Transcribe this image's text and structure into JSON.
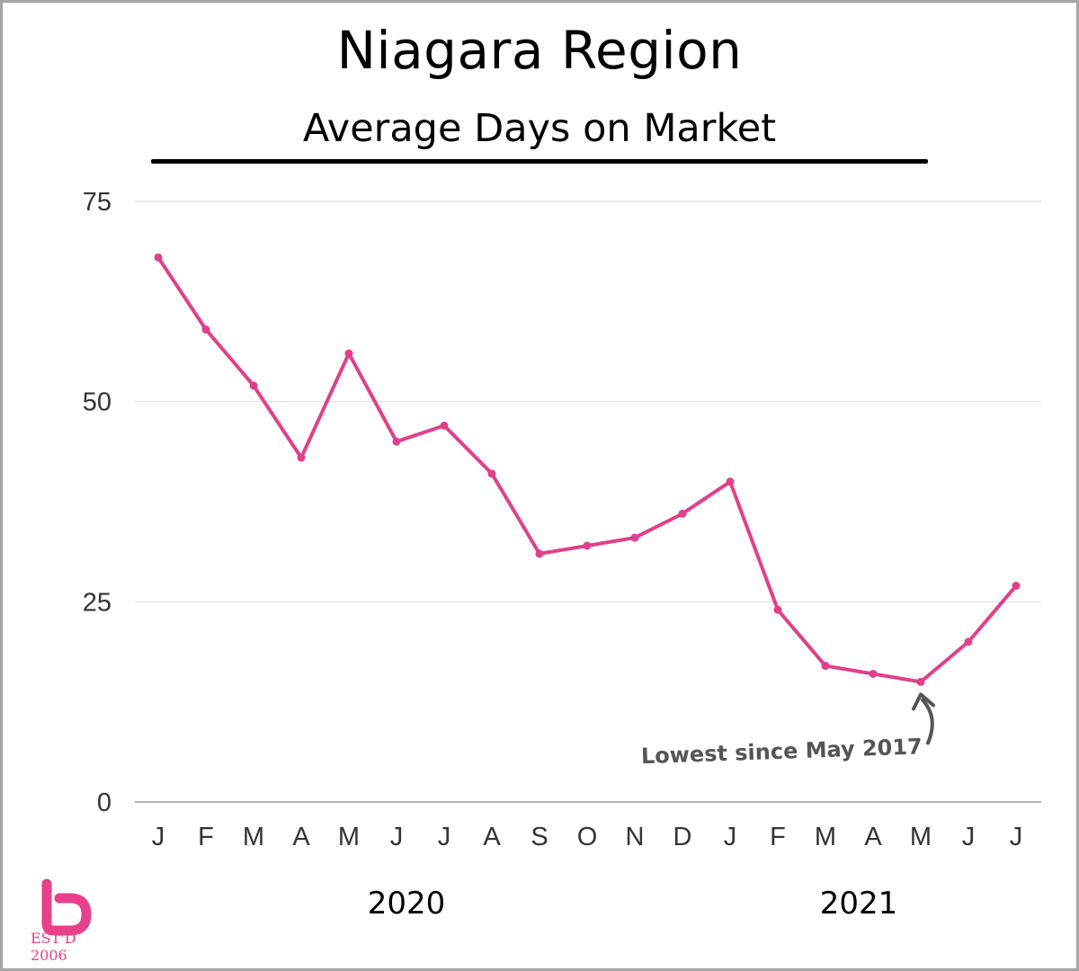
{
  "header": {
    "title": "Niagara Region",
    "subtitle": "Average Days on Market"
  },
  "chart_data": {
    "type": "line",
    "title": "Niagara Region",
    "subtitle": "Average Days on Market",
    "categories": [
      "J",
      "F",
      "M",
      "A",
      "M",
      "J",
      "J",
      "A",
      "S",
      "O",
      "N",
      "D",
      "J",
      "F",
      "M",
      "A",
      "M",
      "J",
      "J"
    ],
    "year_labels": [
      "2020",
      "2021"
    ],
    "series": [
      {
        "values": [
          68,
          59,
          52,
          43,
          56,
          45,
          47,
          41,
          31,
          32,
          33,
          36,
          40,
          24,
          17,
          16,
          15,
          20,
          27
        ]
      }
    ],
    "ylim": [
      0,
      75
    ],
    "yticks": [
      0,
      25,
      50,
      75
    ],
    "grid": true,
    "annotation": {
      "text": "Lowest since May 2017",
      "point_index": 16
    }
  },
  "logo": {
    "caption": "EST'D 2006"
  },
  "colors": {
    "line": "#e0408a",
    "grid": "#d9d9d9",
    "axis": "#999999",
    "annotation": "#555555"
  }
}
